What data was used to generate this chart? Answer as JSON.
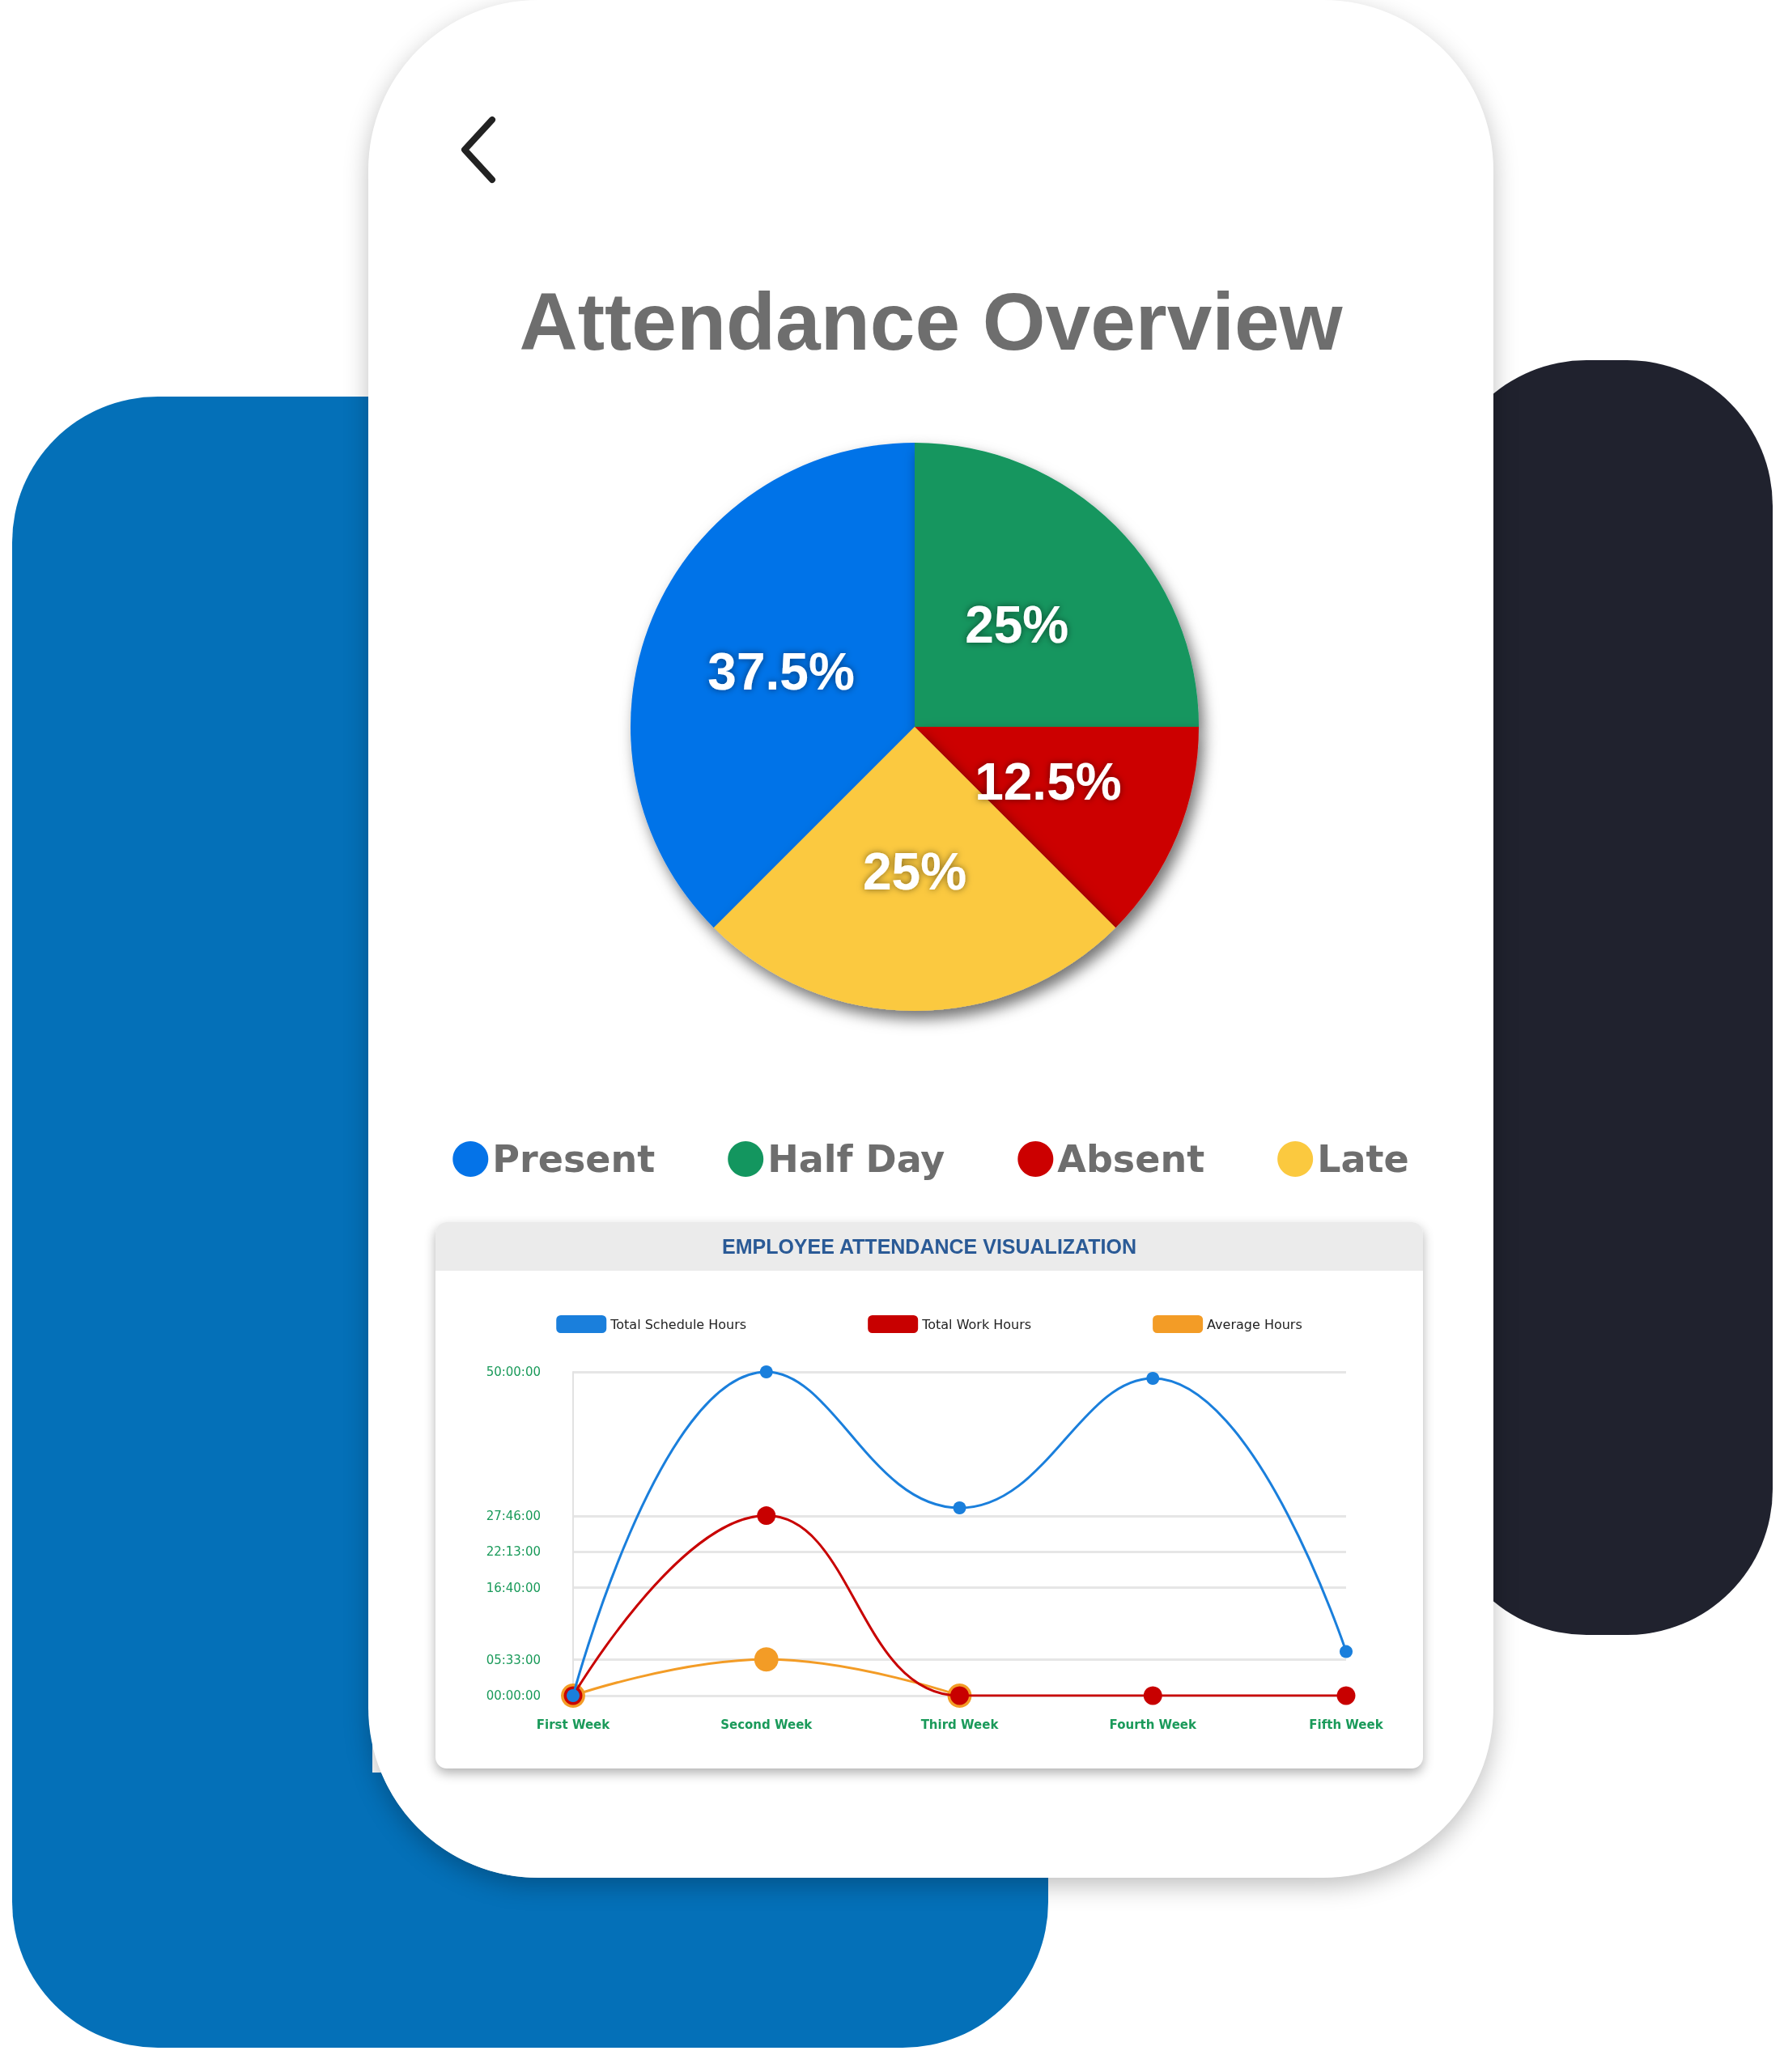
{
  "chart_data": [
    {
      "type": "pie",
      "title": "Attendance Overview",
      "categories": [
        "Present",
        "Half Day",
        "Absent",
        "Late"
      ],
      "values": [
        37.5,
        25,
        12.5,
        25
      ],
      "colors": [
        "#0473e8",
        "#13965f",
        "#cc0000",
        "#fbc93f"
      ],
      "value_labels": [
        "37.5%",
        "25%",
        "12.5%",
        "25%"
      ],
      "legend": "bottom"
    },
    {
      "type": "line",
      "title": "EMPLOYEE ATTENDANCE VISUALIZATION",
      "categories": [
        "First Week",
        "Second Week",
        "Third Week",
        "Fourth Week",
        "Fifth Week"
      ],
      "series": [
        {
          "name": "Total Schedule Hours",
          "color": "#1a7fdc",
          "values": [
            0,
            50,
            29,
            49,
            6.8
          ]
        },
        {
          "name": "Total Work Hours",
          "color": "#c80000",
          "values": [
            0,
            27.8,
            0,
            0,
            0
          ]
        },
        {
          "name": "Average Hours",
          "color": "#f39c26",
          "values": [
            0,
            5.6,
            0,
            null,
            null
          ]
        }
      ],
      "ylim": [
        0,
        50
      ],
      "yticks": [
        {
          "value": 0,
          "label": "00:00:00"
        },
        {
          "value": 5.55,
          "label": "05:33:00"
        },
        {
          "value": 16.6667,
          "label": "16:40:00"
        },
        {
          "value": 22.2167,
          "label": "22:13:00"
        },
        {
          "value": 27.7667,
          "label": "27:46:00"
        },
        {
          "value": 50,
          "label": "50:00:00"
        }
      ],
      "grid": "y",
      "legend": "top",
      "marker": "circle",
      "line_style": "solid"
    }
  ]
}
